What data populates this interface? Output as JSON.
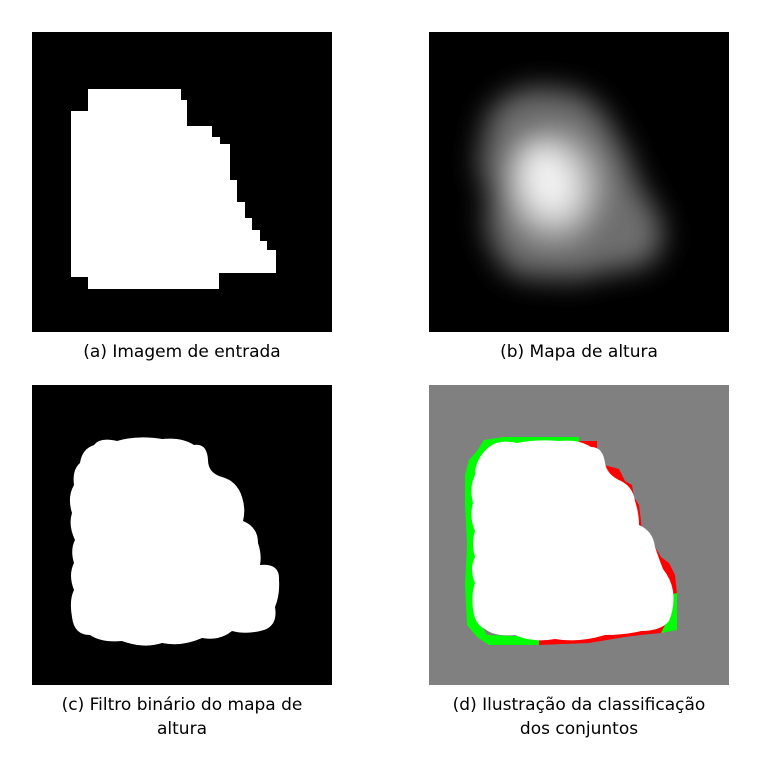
{
  "figure": {
    "colors": {
      "background": "#000000",
      "foreground": "#ffffff",
      "gray_background": "#808080",
      "set_green": "#00ff00",
      "set_red": "#ff0000"
    },
    "panels": [
      {
        "id": "a",
        "caption": "(a) Imagem de entrada",
        "content": "binary-input-image"
      },
      {
        "id": "b",
        "caption": "(b) Mapa de altura",
        "content": "height-map"
      },
      {
        "id": "c",
        "caption": "(c) Filtro binário do mapa de\naltura",
        "content": "binary-filtered-height-map"
      },
      {
        "id": "d",
        "caption": "(d) Ilustração da classificação\ndos conjuntos",
        "content": "set-classification"
      }
    ]
  }
}
